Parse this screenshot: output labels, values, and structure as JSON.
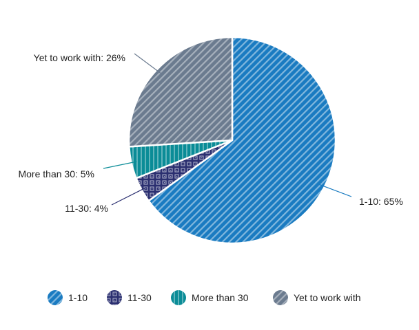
{
  "chart_data": {
    "type": "pie",
    "title": "",
    "slices": [
      {
        "name": "1-10",
        "value": 65,
        "label": "1-10: 65%",
        "color": "#1A7BC1",
        "pattern": "diagonal"
      },
      {
        "name": "11-30",
        "value": 4,
        "label": "11-30: 4%",
        "color": "#2B2F70",
        "pattern": "diamond"
      },
      {
        "name": "More than 30",
        "value": 5,
        "label": "More than 30: 5%",
        "color": "#0A8C97",
        "pattern": "vertical"
      },
      {
        "name": "Yet to work with",
        "value": 26,
        "label": "Yet to work with: 26%",
        "color": "#6B7B8F",
        "pattern": "diagonal"
      }
    ],
    "legend": {
      "placement": "bottom",
      "items": [
        "1-10",
        "11-30",
        "More than 30",
        "Yet to work with"
      ]
    }
  }
}
